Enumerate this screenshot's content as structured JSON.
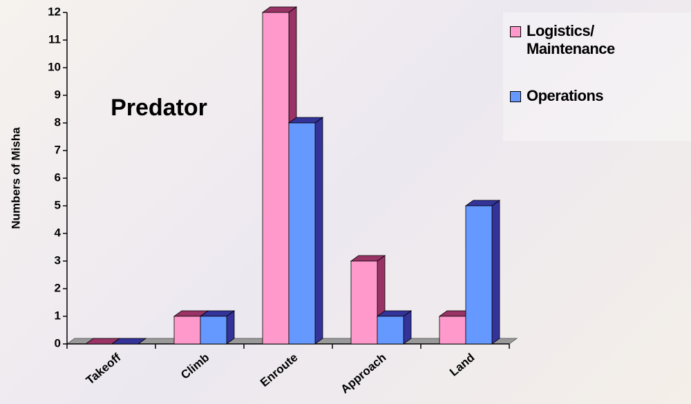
{
  "chart_data": {
    "type": "bar3d",
    "title": "Predator",
    "y_label": "Numbers of Misha",
    "categories": [
      "Takeoff",
      "Climb",
      "Enroute",
      "Approach",
      "Land"
    ],
    "series": [
      {
        "name": "Logistics/ Maintenance",
        "color": "#ff99cc",
        "side": "#993366",
        "values": [
          0,
          1,
          12,
          3,
          1
        ]
      },
      {
        "name": "Operations",
        "color": "#6699ff",
        "side": "#333399",
        "values": [
          0,
          1,
          8,
          1,
          5
        ]
      }
    ],
    "ylim": [
      0,
      12
    ],
    "yticks": [
      0,
      1,
      2,
      3,
      4,
      5,
      6,
      7,
      8,
      9,
      10,
      11,
      12
    ],
    "legend": "upper right"
  }
}
